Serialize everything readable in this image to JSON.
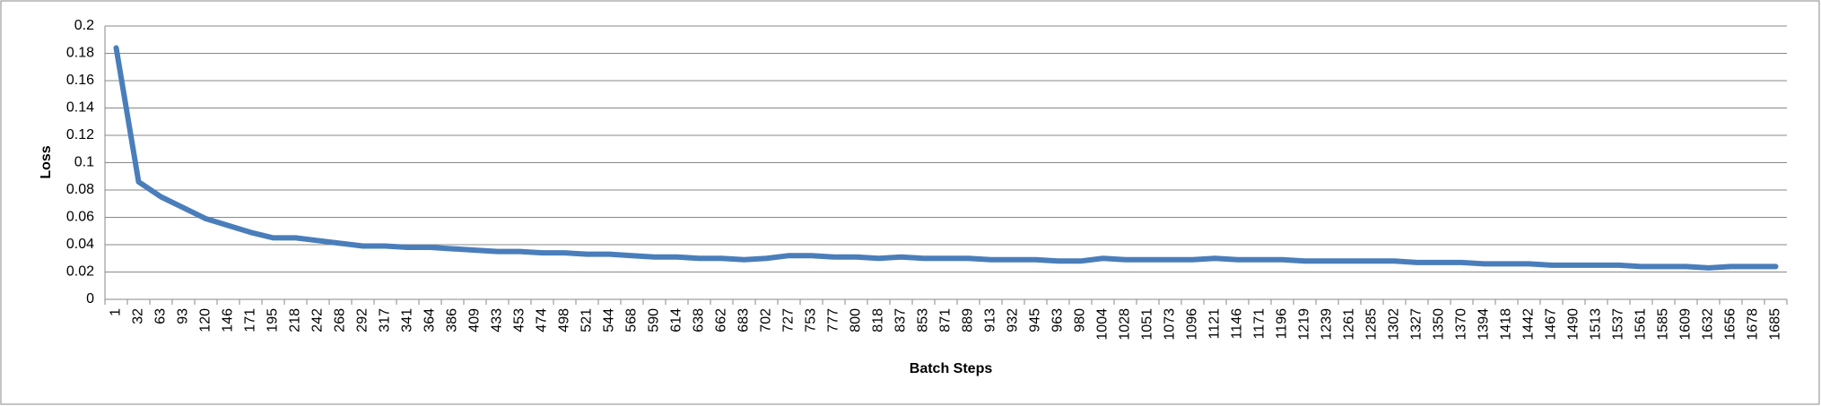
{
  "chart_data": {
    "type": "line",
    "x_label": "Batch Steps",
    "y_label": "Loss",
    "categories": [
      "1",
      "32",
      "63",
      "93",
      "120",
      "146",
      "171",
      "195",
      "218",
      "242",
      "268",
      "292",
      "317",
      "341",
      "364",
      "386",
      "409",
      "433",
      "453",
      "474",
      "498",
      "521",
      "544",
      "568",
      "590",
      "614",
      "638",
      "662",
      "683",
      "702",
      "727",
      "753",
      "777",
      "800",
      "818",
      "837",
      "853",
      "871",
      "889",
      "913",
      "932",
      "945",
      "963",
      "980",
      "1004",
      "1028",
      "1051",
      "1073",
      "1096",
      "1121",
      "1146",
      "1171",
      "1196",
      "1219",
      "1239",
      "1261",
      "1285",
      "1302",
      "1327",
      "1350",
      "1370",
      "1394",
      "1418",
      "1442",
      "1467",
      "1490",
      "1513",
      "1537",
      "1561",
      "1585",
      "1609",
      "1632",
      "1656",
      "1678",
      "1685"
    ],
    "series": [
      {
        "color": "#4a7ebb",
        "values": [
          0.184,
          0.086,
          0.075,
          0.067,
          0.059,
          0.054,
          0.049,
          0.045,
          0.045,
          0.043,
          0.041,
          0.039,
          0.039,
          0.038,
          0.038,
          0.037,
          0.036,
          0.035,
          0.035,
          0.034,
          0.034,
          0.033,
          0.033,
          0.032,
          0.031,
          0.031,
          0.03,
          0.03,
          0.029,
          0.03,
          0.032,
          0.032,
          0.031,
          0.031,
          0.03,
          0.031,
          0.03,
          0.03,
          0.03,
          0.029,
          0.029,
          0.029,
          0.028,
          0.028,
          0.03,
          0.029,
          0.029,
          0.029,
          0.029,
          0.03,
          0.029,
          0.029,
          0.029,
          0.028,
          0.028,
          0.028,
          0.028,
          0.028,
          0.027,
          0.027,
          0.027,
          0.026,
          0.026,
          0.026,
          0.025,
          0.025,
          0.025,
          0.025,
          0.024,
          0.024,
          0.024,
          0.023,
          0.024,
          0.024,
          0.024
        ]
      }
    ],
    "ylim": [
      0,
      0.2
    ],
    "yticks": [
      0,
      0.02,
      0.04,
      0.06,
      0.08,
      0.1,
      0.12,
      0.14,
      0.16,
      0.18,
      0.2
    ],
    "grid": true
  }
}
